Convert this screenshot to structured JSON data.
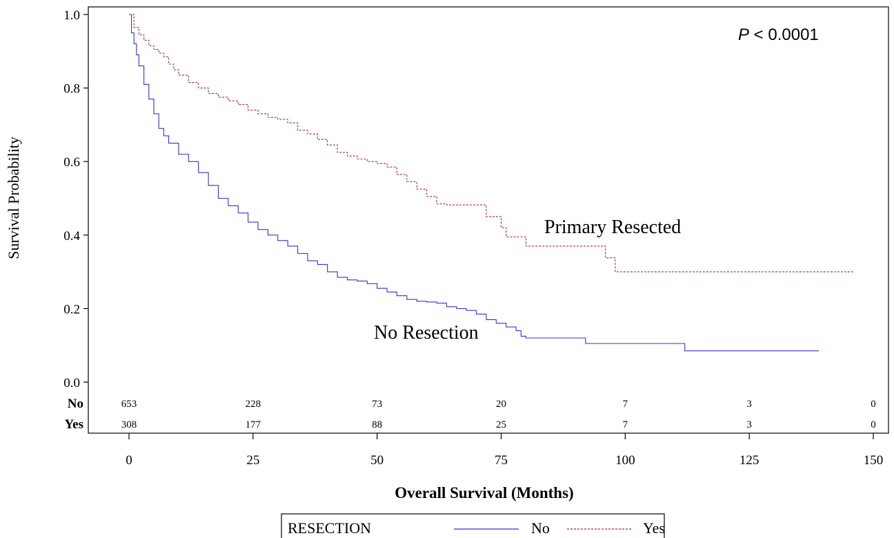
{
  "chart_data": {
    "type": "line",
    "subtype": "kaplan-meier",
    "xlabel": "Overall Survival (Months)",
    "ylabel": "Survival Probability",
    "xlim": [
      0,
      150
    ],
    "ylim": [
      0,
      1.0
    ],
    "x_ticks": [
      "0",
      "25",
      "50",
      "75",
      "100",
      "125",
      "150"
    ],
    "y_ticks": [
      "0.0",
      "0.2",
      "0.4",
      "0.6",
      "0.8",
      "1.0"
    ],
    "grid": false,
    "p_value": {
      "prefix": "P",
      "text": " < 0.0001"
    },
    "annotations": {
      "primary_resected": "Primary Resected",
      "no_resection": "No Resection"
    },
    "legend": {
      "title": "RESECTION",
      "placement": "bottom-center",
      "entries": [
        {
          "label": "No",
          "color": "#3333cc",
          "dash": "solid"
        },
        {
          "label": "Yes",
          "color": "#a52a2a",
          "dash": "dashed"
        }
      ]
    },
    "series": [
      {
        "name": "No",
        "color": "#3333cc",
        "points": [
          [
            0,
            1.0
          ],
          [
            0.5,
            0.95
          ],
          [
            1,
            0.92
          ],
          [
            1.5,
            0.89
          ],
          [
            2,
            0.86
          ],
          [
            3,
            0.81
          ],
          [
            4,
            0.77
          ],
          [
            5,
            0.73
          ],
          [
            6,
            0.69
          ],
          [
            7,
            0.67
          ],
          [
            8,
            0.65
          ],
          [
            10,
            0.62
          ],
          [
            12,
            0.6
          ],
          [
            14,
            0.57
          ],
          [
            16,
            0.535
          ],
          [
            18,
            0.5
          ],
          [
            20,
            0.48
          ],
          [
            22,
            0.46
          ],
          [
            24,
            0.435
          ],
          [
            26,
            0.415
          ],
          [
            28,
            0.4
          ],
          [
            30,
            0.385
          ],
          [
            32,
            0.37
          ],
          [
            34,
            0.35
          ],
          [
            36,
            0.33
          ],
          [
            38,
            0.32
          ],
          [
            40,
            0.3
          ],
          [
            42,
            0.285
          ],
          [
            44,
            0.278
          ],
          [
            46,
            0.275
          ],
          [
            48,
            0.268
          ],
          [
            50,
            0.255
          ],
          [
            52,
            0.245
          ],
          [
            54,
            0.235
          ],
          [
            56,
            0.225
          ],
          [
            58,
            0.22
          ],
          [
            60,
            0.218
          ],
          [
            62,
            0.215
          ],
          [
            64,
            0.205
          ],
          [
            66,
            0.2
          ],
          [
            68,
            0.195
          ],
          [
            70,
            0.185
          ],
          [
            72,
            0.17
          ],
          [
            74,
            0.16
          ],
          [
            76,
            0.15
          ],
          [
            78,
            0.14
          ],
          [
            79,
            0.125
          ],
          [
            80,
            0.12
          ],
          [
            92,
            0.12
          ],
          [
            92,
            0.105
          ],
          [
            112,
            0.105
          ],
          [
            112,
            0.085
          ],
          [
            139,
            0.085
          ]
        ]
      },
      {
        "name": "Yes",
        "color": "#a52a2a",
        "points": [
          [
            0,
            1.0
          ],
          [
            1,
            0.965
          ],
          [
            2,
            0.945
          ],
          [
            3,
            0.93
          ],
          [
            4,
            0.915
          ],
          [
            5,
            0.905
          ],
          [
            6,
            0.895
          ],
          [
            7,
            0.885
          ],
          [
            8,
            0.865
          ],
          [
            9,
            0.85
          ],
          [
            10,
            0.835
          ],
          [
            12,
            0.815
          ],
          [
            14,
            0.8
          ],
          [
            16,
            0.785
          ],
          [
            18,
            0.775
          ],
          [
            20,
            0.765
          ],
          [
            22,
            0.755
          ],
          [
            24,
            0.74
          ],
          [
            26,
            0.73
          ],
          [
            28,
            0.72
          ],
          [
            30,
            0.715
          ],
          [
            32,
            0.705
          ],
          [
            34,
            0.685
          ],
          [
            36,
            0.675
          ],
          [
            38,
            0.66
          ],
          [
            40,
            0.645
          ],
          [
            42,
            0.625
          ],
          [
            44,
            0.615
          ],
          [
            46,
            0.607
          ],
          [
            48,
            0.6
          ],
          [
            50,
            0.595
          ],
          [
            52,
            0.585
          ],
          [
            54,
            0.565
          ],
          [
            56,
            0.545
          ],
          [
            58,
            0.525
          ],
          [
            60,
            0.505
          ],
          [
            62,
            0.485
          ],
          [
            64,
            0.482
          ],
          [
            72,
            0.482
          ],
          [
            72,
            0.45
          ],
          [
            74,
            0.45
          ],
          [
            75,
            0.42
          ],
          [
            76,
            0.395
          ],
          [
            80,
            0.395
          ],
          [
            80,
            0.37
          ],
          [
            96,
            0.37
          ],
          [
            96,
            0.338
          ],
          [
            98,
            0.338
          ],
          [
            98,
            0.3
          ],
          [
            146,
            0.3
          ]
        ]
      }
    ],
    "risk_table": {
      "time_points": [
        0,
        25,
        50,
        75,
        100,
        125,
        150
      ],
      "rows": [
        {
          "label": "No",
          "values": [
            "653",
            "228",
            "73",
            "20",
            "7",
            "3",
            "0"
          ]
        },
        {
          "label": "Yes",
          "values": [
            "308",
            "177",
            "88",
            "25",
            "7",
            "3",
            "0"
          ]
        }
      ]
    }
  }
}
